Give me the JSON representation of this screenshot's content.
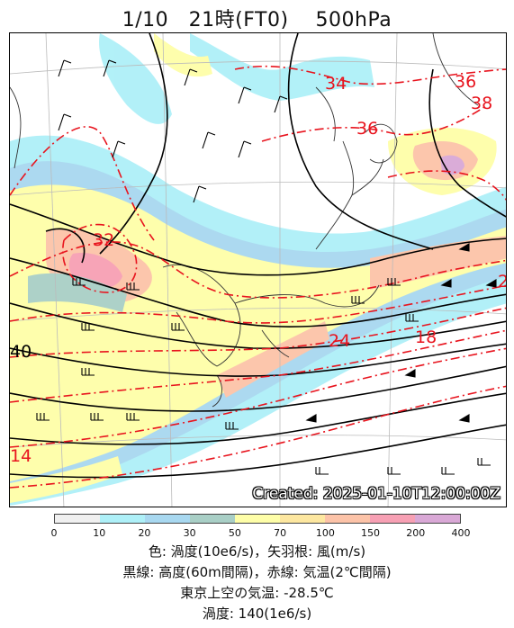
{
  "title": "1/10　21時(FT0)　 500hPa",
  "created_label": "Created: 2025-01-10T12:00:00Z",
  "colorbar": {
    "colors": [
      "#f0f0f0",
      "#aef0f8",
      "#a8d8f0",
      "#a9cfc6",
      "#fefea8",
      "#fde7a0",
      "#fcc3a8",
      "#f7a0b4",
      "#d9a8d6"
    ],
    "ticks": [
      "0",
      "10",
      "20",
      "30",
      "50",
      "70",
      "100",
      "150",
      "200",
      "400"
    ]
  },
  "legend": {
    "line1": "色: 渦度(10e6/s)，矢羽根: 風(m/s)",
    "line2": "黒線: 高度(60m間隔)，赤線: 気温(2℃間隔)",
    "line3": "東京上空の気温: -28.5℃",
    "line4": "渦度: 140(1e6/s)"
  },
  "map": {
    "temperature_labels": [
      "34",
      "36",
      "38",
      "36",
      "32",
      "24",
      "18",
      "2",
      "14"
    ],
    "height_labels": [
      "40"
    ],
    "line_colors": {
      "height": "#000000",
      "temperature": "#e8141e",
      "coast": "#333333",
      "grid": "#bbbbbb"
    }
  }
}
